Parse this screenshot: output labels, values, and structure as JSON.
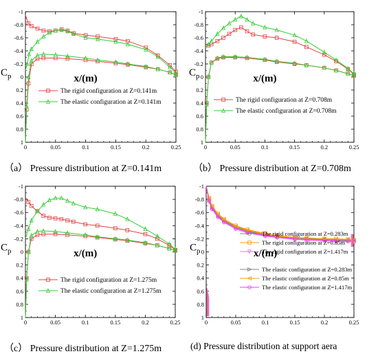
{
  "chart_data": [
    {
      "type": "line",
      "caption": "（a） Pressure distribution at Z=0.141m",
      "xlabel": "x/(m)",
      "ylabel": "Cp",
      "xlim": [
        0,
        0.25
      ],
      "ylim": [
        -1,
        1
      ],
      "y_inverted": true,
      "xticks": [
        "0",
        "0.05",
        "0.1",
        "0.15",
        "0.2",
        "0.25"
      ],
      "yticks": [
        "-1",
        "-0.8",
        "-0.6",
        "-0.4",
        "-0.2",
        "0",
        "0.2",
        "0.4",
        "0.6",
        "0.8",
        "1"
      ],
      "legend_position": "middle-left",
      "legend": [
        {
          "label": "The rigid configuration at Z=0.141m",
          "color": "#e04040",
          "marker": "square"
        },
        {
          "label": "The elastic configuration at Z=0.141m",
          "color": "#33cc33",
          "marker": "triangle"
        }
      ],
      "series": [
        {
          "group": 0,
          "surface": "upper",
          "color": "#e04040",
          "marker": "square",
          "x": [
            0,
            0.005,
            0.01,
            0.02,
            0.03,
            0.04,
            0.05,
            0.06,
            0.07,
            0.08,
            0.1,
            0.12,
            0.15,
            0.17,
            0.2,
            0.22,
            0.24,
            0.25
          ],
          "y": [
            -0.95,
            -0.82,
            -0.78,
            -0.74,
            -0.71,
            -0.7,
            -0.71,
            -0.73,
            -0.71,
            -0.67,
            -0.64,
            -0.62,
            -0.58,
            -0.55,
            -0.45,
            -0.33,
            -0.18,
            -0.08
          ]
        },
        {
          "group": 0,
          "surface": "lower",
          "color": "#e04040",
          "marker": "square",
          "x": [
            0,
            0.002,
            0.005,
            0.01,
            0.02,
            0.03,
            0.05,
            0.07,
            0.1,
            0.12,
            0.15,
            0.17,
            0.2,
            0.22,
            0.24,
            0.25
          ],
          "y": [
            1,
            0.5,
            0.1,
            -0.2,
            -0.28,
            -0.29,
            -0.29,
            -0.28,
            -0.26,
            -0.24,
            -0.21,
            -0.19,
            -0.15,
            -0.12,
            -0.07,
            -0.03
          ]
        },
        {
          "group": 1,
          "surface": "upper",
          "color": "#33cc33",
          "marker": "triangle",
          "x": [
            0,
            0.003,
            0.006,
            0.01,
            0.02,
            0.03,
            0.04,
            0.05,
            0.06,
            0.07,
            0.08,
            0.1,
            0.12,
            0.15,
            0.17,
            0.2,
            0.22,
            0.24,
            0.25
          ],
          "y": [
            -0.1,
            -0.2,
            -0.35,
            -0.43,
            -0.54,
            -0.62,
            -0.68,
            -0.71,
            -0.72,
            -0.7,
            -0.66,
            -0.6,
            -0.58,
            -0.54,
            -0.5,
            -0.42,
            -0.31,
            -0.15,
            -0.06
          ]
        },
        {
          "group": 1,
          "surface": "lower",
          "color": "#33cc33",
          "marker": "triangle",
          "x": [
            0,
            0.002,
            0.005,
            0.01,
            0.02,
            0.03,
            0.05,
            0.07,
            0.1,
            0.12,
            0.15,
            0.17,
            0.2,
            0.22,
            0.24,
            0.25
          ],
          "y": [
            1,
            0.45,
            0.0,
            -0.25,
            -0.33,
            -0.35,
            -0.34,
            -0.32,
            -0.29,
            -0.26,
            -0.23,
            -0.2,
            -0.16,
            -0.12,
            -0.07,
            -0.03
          ]
        }
      ]
    },
    {
      "type": "line",
      "caption": "（b） Pressure distribution at Z=0.708m",
      "xlabel": "x/(m)",
      "ylabel": "Cp",
      "xlim": [
        0,
        0.25
      ],
      "ylim": [
        -1,
        1
      ],
      "y_inverted": true,
      "xticks": [
        "0",
        "0.05",
        "0.1",
        "0.15",
        "0.2",
        "0.25"
      ],
      "yticks": [
        "-1",
        "-0.8",
        "-0.6",
        "-0.4",
        "-0.2",
        "0",
        "0.2",
        "0.4",
        "0.6",
        "0.8",
        "1"
      ],
      "legend_position": "middle-left",
      "legend": [
        {
          "label": "The rigid configuration at Z=0.708m",
          "color": "#e04040",
          "marker": "square"
        },
        {
          "label": "The elastic configuration at Z=0.708m",
          "color": "#33cc33",
          "marker": "triangle"
        }
      ],
      "series": [
        {
          "group": 0,
          "surface": "upper",
          "color": "#e04040",
          "marker": "square",
          "x": [
            0,
            0.005,
            0.01,
            0.02,
            0.03,
            0.04,
            0.05,
            0.06,
            0.07,
            0.08,
            0.1,
            0.12,
            0.15,
            0.17,
            0.2,
            0.22,
            0.24,
            0.25
          ],
          "y": [
            -0.5,
            -0.48,
            -0.5,
            -0.55,
            -0.6,
            -0.66,
            -0.72,
            -0.76,
            -0.7,
            -0.65,
            -0.62,
            -0.6,
            -0.54,
            -0.46,
            -0.34,
            -0.24,
            -0.12,
            -0.04
          ]
        },
        {
          "group": 0,
          "surface": "lower",
          "color": "#e04040",
          "marker": "square",
          "x": [
            0,
            0.002,
            0.005,
            0.01,
            0.02,
            0.03,
            0.05,
            0.07,
            0.1,
            0.12,
            0.15,
            0.17,
            0.2,
            0.22,
            0.24,
            0.25
          ],
          "y": [
            1,
            0.4,
            0.0,
            -0.22,
            -0.28,
            -0.3,
            -0.3,
            -0.29,
            -0.26,
            -0.23,
            -0.2,
            -0.18,
            -0.14,
            -0.1,
            -0.05,
            -0.02
          ]
        },
        {
          "group": 1,
          "surface": "upper",
          "color": "#33cc33",
          "marker": "triangle",
          "x": [
            0,
            0.005,
            0.01,
            0.02,
            0.03,
            0.04,
            0.05,
            0.06,
            0.07,
            0.08,
            0.1,
            0.12,
            0.15,
            0.17,
            0.2,
            0.22,
            0.24,
            0.25
          ],
          "y": [
            -0.45,
            -0.5,
            -0.55,
            -0.66,
            -0.75,
            -0.82,
            -0.88,
            -0.93,
            -0.88,
            -0.82,
            -0.76,
            -0.72,
            -0.64,
            -0.55,
            -0.38,
            -0.26,
            -0.13,
            -0.05
          ]
        },
        {
          "group": 1,
          "surface": "lower",
          "color": "#33cc33",
          "marker": "triangle",
          "x": [
            0,
            0.002,
            0.005,
            0.01,
            0.02,
            0.03,
            0.05,
            0.07,
            0.1,
            0.12,
            0.15,
            0.17,
            0.2,
            0.22,
            0.24,
            0.25
          ],
          "y": [
            1,
            0.42,
            0.0,
            -0.22,
            -0.29,
            -0.31,
            -0.31,
            -0.3,
            -0.27,
            -0.24,
            -0.21,
            -0.18,
            -0.14,
            -0.1,
            -0.05,
            -0.02
          ]
        }
      ]
    },
    {
      "type": "line",
      "caption": "（c） Pressure distribution at Z=1.275m",
      "xlabel": "x/(m)",
      "ylabel": "Cp",
      "xlim": [
        0,
        0.25
      ],
      "ylim": [
        -1,
        1
      ],
      "y_inverted": true,
      "xticks": [
        "0",
        "0.05",
        "0.1",
        "0.15",
        "0.2",
        "0.25"
      ],
      "yticks": [
        "-1",
        "-0.8",
        "-0.6",
        "-0.4",
        "-0.2",
        "0",
        "0.2",
        "0.4",
        "0.6",
        "0.8",
        "1"
      ],
      "legend_position": "lower-left",
      "legend": [
        {
          "label": "The rigid configuration at Z=1.275m",
          "color": "#e04040",
          "marker": "square"
        },
        {
          "label": "The elastic configuration at Z=1.275m",
          "color": "#33cc33",
          "marker": "triangle"
        }
      ],
      "series": [
        {
          "group": 0,
          "surface": "upper",
          "color": "#e04040",
          "marker": "square",
          "x": [
            0,
            0.005,
            0.01,
            0.02,
            0.03,
            0.04,
            0.05,
            0.06,
            0.07,
            0.08,
            0.1,
            0.12,
            0.15,
            0.17,
            0.2,
            0.22,
            0.24,
            0.25
          ],
          "y": [
            -0.83,
            -0.76,
            -0.7,
            -0.62,
            -0.55,
            -0.52,
            -0.51,
            -0.5,
            -0.48,
            -0.46,
            -0.42,
            -0.4,
            -0.36,
            -0.33,
            -0.27,
            -0.2,
            -0.1,
            -0.03
          ]
        },
        {
          "group": 0,
          "surface": "lower",
          "color": "#e04040",
          "marker": "square",
          "x": [
            0,
            0.002,
            0.005,
            0.01,
            0.02,
            0.03,
            0.05,
            0.07,
            0.1,
            0.12,
            0.15,
            0.17,
            0.2,
            0.22,
            0.24,
            0.25
          ],
          "y": [
            1,
            0.4,
            0.0,
            -0.2,
            -0.26,
            -0.27,
            -0.27,
            -0.26,
            -0.24,
            -0.22,
            -0.19,
            -0.17,
            -0.13,
            -0.1,
            -0.05,
            -0.02
          ]
        },
        {
          "group": 1,
          "surface": "upper",
          "color": "#33cc33",
          "marker": "triangle",
          "x": [
            0,
            0.005,
            0.01,
            0.02,
            0.03,
            0.04,
            0.05,
            0.06,
            0.07,
            0.08,
            0.1,
            0.12,
            0.15,
            0.17,
            0.2,
            0.22,
            0.24,
            0.25
          ],
          "y": [
            -0.2,
            -0.35,
            -0.48,
            -0.62,
            -0.72,
            -0.79,
            -0.82,
            -0.82,
            -0.78,
            -0.74,
            -0.68,
            -0.65,
            -0.58,
            -0.5,
            -0.35,
            -0.24,
            -0.12,
            -0.04
          ]
        },
        {
          "group": 1,
          "surface": "lower",
          "color": "#33cc33",
          "marker": "triangle",
          "x": [
            0,
            0.002,
            0.005,
            0.01,
            0.02,
            0.03,
            0.05,
            0.07,
            0.1,
            0.12,
            0.15,
            0.17,
            0.2,
            0.22,
            0.24,
            0.25
          ],
          "y": [
            1,
            0.42,
            0.0,
            -0.25,
            -0.31,
            -0.32,
            -0.31,
            -0.29,
            -0.26,
            -0.23,
            -0.2,
            -0.18,
            -0.14,
            -0.1,
            -0.05,
            -0.02
          ]
        }
      ]
    },
    {
      "type": "line",
      "caption": "(d) Pressure distribution at support aera",
      "xlabel": "x/(m)",
      "ylabel": "Cp",
      "xlim": [
        0,
        0.25
      ],
      "ylim": [
        -1,
        1
      ],
      "y_inverted": true,
      "xticks": [
        "0",
        "0.05",
        "0.1",
        "0.15",
        "0.2",
        "0.25"
      ],
      "yticks": [
        "-1",
        "-0.8",
        "-0.6",
        "-0.4",
        "-0.2",
        "0",
        "0.2",
        "0.4",
        "0.6",
        "0.8",
        "1"
      ],
      "legend_position": "right",
      "legend": [
        {
          "label": "The rigid configuration at Z=0.283m",
          "color": "#808080",
          "marker": "circle"
        },
        {
          "label": "The rigid configuration at Z=0.85m",
          "color": "#ff9900",
          "marker": "square"
        },
        {
          "label": "The rigid configuration at Z=1.417m",
          "color": "#ff66ff",
          "marker": "triangle-down"
        },
        {
          "label": "The elastic configuration at Z=0.283m",
          "color": "#808080",
          "marker": "triangle-right"
        },
        {
          "label": "The elastic configuration at Z=0.85m",
          "color": "#ff9900",
          "marker": "triangle-left"
        },
        {
          "label": "The elastic configuration at Z=1.417m",
          "color": "#ff33ff",
          "marker": "circle"
        }
      ],
      "series": [
        {
          "group": 0,
          "color": "#808080",
          "marker": "circle",
          "x": [
            0,
            0.005,
            0.01,
            0.02,
            0.03,
            0.05,
            0.07,
            0.1,
            0.12,
            0.15,
            0.17,
            0.2,
            0.22,
            0.24,
            0.25
          ],
          "y": [
            -1,
            -0.8,
            -0.68,
            -0.56,
            -0.48,
            -0.38,
            -0.32,
            -0.26,
            -0.24,
            -0.21,
            -0.2,
            -0.19,
            -0.18,
            -0.18,
            -0.17
          ]
        },
        {
          "group": 1,
          "color": "#ff9900",
          "marker": "square",
          "x": [
            0,
            0.005,
            0.01,
            0.02,
            0.03,
            0.05,
            0.07,
            0.1,
            0.12,
            0.15,
            0.17,
            0.2,
            0.22,
            0.24,
            0.25
          ],
          "y": [
            -1,
            -0.82,
            -0.7,
            -0.58,
            -0.5,
            -0.4,
            -0.34,
            -0.28,
            -0.25,
            -0.22,
            -0.21,
            -0.2,
            -0.2,
            -0.19,
            -0.18
          ]
        },
        {
          "group": 2,
          "color": "#ff66ff",
          "marker": "triangle-down",
          "x": [
            0,
            0.005,
            0.01,
            0.02,
            0.03,
            0.05,
            0.07,
            0.1,
            0.12,
            0.15,
            0.17,
            0.2,
            0.22,
            0.24,
            0.25
          ],
          "y": [
            -1,
            -0.78,
            -0.66,
            -0.54,
            -0.46,
            -0.36,
            -0.3,
            -0.25,
            -0.22,
            -0.2,
            -0.19,
            -0.18,
            -0.17,
            -0.17,
            -0.16
          ]
        },
        {
          "group": 3,
          "color": "#808080",
          "marker": "triangle-right",
          "x": [
            0,
            0.005,
            0.01,
            0.02,
            0.03,
            0.05,
            0.07,
            0.1,
            0.12,
            0.15,
            0.17,
            0.2,
            0.22,
            0.24,
            0.25
          ],
          "y": [
            -1,
            -0.79,
            -0.67,
            -0.55,
            -0.47,
            -0.37,
            -0.31,
            -0.26,
            -0.23,
            -0.21,
            -0.2,
            -0.19,
            -0.18,
            -0.17,
            -0.17
          ]
        },
        {
          "group": 4,
          "color": "#ff9900",
          "marker": "triangle-left",
          "x": [
            0,
            0.005,
            0.01,
            0.02,
            0.03,
            0.05,
            0.07,
            0.1,
            0.12,
            0.15,
            0.17,
            0.2,
            0.22,
            0.24,
            0.25
          ],
          "y": [
            -1,
            -0.81,
            -0.69,
            -0.57,
            -0.49,
            -0.39,
            -0.33,
            -0.27,
            -0.24,
            -0.22,
            -0.21,
            -0.2,
            -0.19,
            -0.19,
            -0.18
          ]
        },
        {
          "group": 5,
          "color": "#ff33ff",
          "marker": "circle",
          "x": [
            0,
            0.005,
            0.01,
            0.02,
            0.03,
            0.05,
            0.07,
            0.1,
            0.12,
            0.15,
            0.17,
            0.2,
            0.22,
            0.24,
            0.25
          ],
          "y": [
            -1,
            -0.77,
            -0.65,
            -0.53,
            -0.45,
            -0.35,
            -0.29,
            -0.24,
            -0.22,
            -0.19,
            -0.18,
            -0.17,
            -0.16,
            -0.16,
            -0.15
          ]
        }
      ]
    }
  ]
}
